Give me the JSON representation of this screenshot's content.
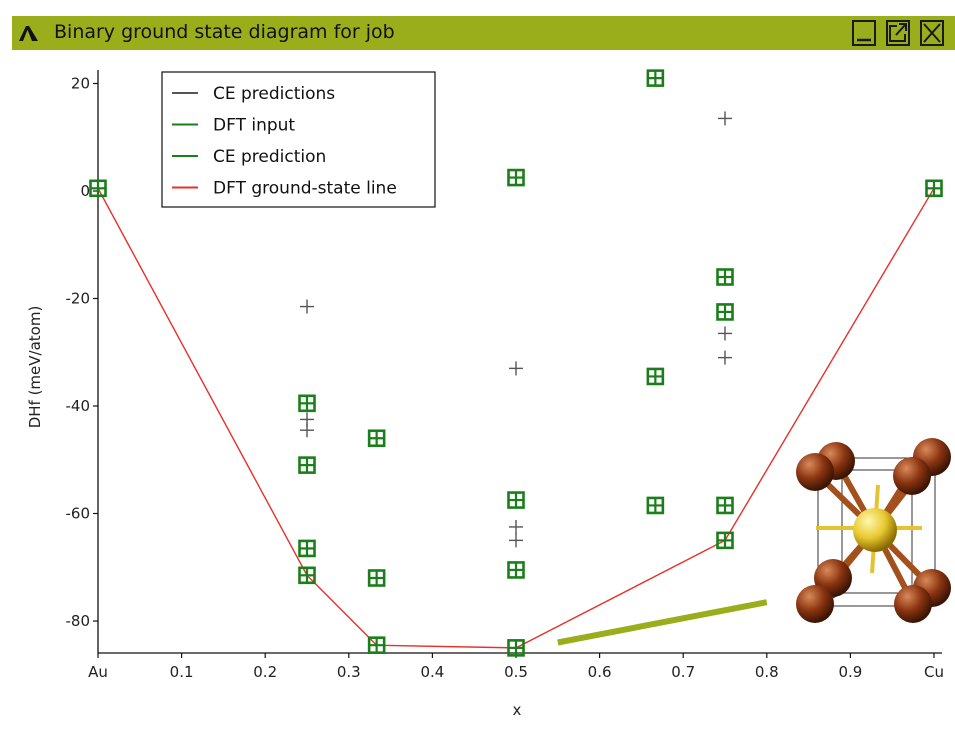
{
  "window": {
    "title": "Binary ground state diagram for job",
    "title_bar_color": "#9aae1c",
    "icon": "app-logo-icon",
    "buttons": [
      "minimize-button",
      "popout-button",
      "close-button"
    ]
  },
  "chart_data": {
    "type": "scatter",
    "xlabel": "x",
    "ylabel": "DHf (meV/atom)",
    "xlim": [
      0,
      1
    ],
    "ylim": [
      -86,
      22
    ],
    "x_ticks": [
      {
        "value": 0,
        "label": "Au"
      },
      {
        "value": 0.1,
        "label": "0.1"
      },
      {
        "value": 0.2,
        "label": "0.2"
      },
      {
        "value": 0.3,
        "label": "0.3"
      },
      {
        "value": 0.4,
        "label": "0.4"
      },
      {
        "value": 0.5,
        "label": "0.5"
      },
      {
        "value": 0.6,
        "label": "0.6"
      },
      {
        "value": 0.7,
        "label": "0.7"
      },
      {
        "value": 0.8,
        "label": "0.8"
      },
      {
        "value": 0.9,
        "label": "0.9"
      },
      {
        "value": 1.0,
        "label": "Cu"
      }
    ],
    "y_ticks": [
      {
        "value": 20,
        "label": "20"
      },
      {
        "value": 0,
        "label": "0"
      },
      {
        "value": -20,
        "label": "-20"
      },
      {
        "value": -40,
        "label": "-40"
      },
      {
        "value": -60,
        "label": "-60"
      },
      {
        "value": -80,
        "label": "-80"
      }
    ],
    "legend_position": "top-left",
    "series": [
      {
        "name": "CE predictions",
        "color": "#555555",
        "marker": "plus",
        "points": [
          [
            0.25,
            -21.5
          ],
          [
            0.25,
            -42.5
          ],
          [
            0.25,
            -44.5
          ],
          [
            0.5,
            -33.0
          ],
          [
            0.5,
            -62.5
          ],
          [
            0.5,
            -65.0
          ],
          [
            0.75,
            13.5
          ],
          [
            0.75,
            -26.5
          ],
          [
            0.75,
            -31.0
          ]
        ]
      },
      {
        "name": "DFT input",
        "color": "#1a7f1a",
        "marker": "square",
        "points": [
          [
            0,
            0.5
          ],
          [
            0.25,
            -39.5
          ],
          [
            0.25,
            -51
          ],
          [
            0.25,
            -66.5
          ],
          [
            0.25,
            -71.5
          ],
          [
            0.3333,
            -46
          ],
          [
            0.3333,
            -72
          ],
          [
            0.3333,
            -84.5
          ],
          [
            0.5,
            2.5
          ],
          [
            0.5,
            -57.5
          ],
          [
            0.5,
            -70.5
          ],
          [
            0.5,
            -85
          ],
          [
            0.6667,
            21
          ],
          [
            0.6667,
            -34.5
          ],
          [
            0.6667,
            -58.5
          ],
          [
            0.75,
            -16
          ],
          [
            0.75,
            -22.5
          ],
          [
            0.75,
            -58.5
          ],
          [
            0.75,
            -65
          ],
          [
            1.0,
            0.5
          ]
        ]
      },
      {
        "name": "CE prediction",
        "color": "#1a7f1a",
        "marker": "plus",
        "points": [
          [
            0,
            0.5
          ],
          [
            0.25,
            -39.5
          ],
          [
            0.25,
            -51
          ],
          [
            0.25,
            -66.5
          ],
          [
            0.25,
            -71.5
          ],
          [
            0.3333,
            -46
          ],
          [
            0.3333,
            -72
          ],
          [
            0.3333,
            -84.5
          ],
          [
            0.5,
            2.5
          ],
          [
            0.5,
            -57.5
          ],
          [
            0.5,
            -70.5
          ],
          [
            0.5,
            -85
          ],
          [
            0.6667,
            21
          ],
          [
            0.6667,
            -34.5
          ],
          [
            0.6667,
            -58.5
          ],
          [
            0.75,
            -16
          ],
          [
            0.75,
            -22.5
          ],
          [
            0.75,
            -58.5
          ],
          [
            0.75,
            -65
          ],
          [
            1.0,
            0.5
          ]
        ]
      },
      {
        "name": "DFT ground-state line",
        "color": "#e8302a",
        "marker": "line",
        "points": [
          [
            0,
            0.5
          ],
          [
            0.25,
            -71.5
          ],
          [
            0.3333,
            -84.5
          ],
          [
            0.5,
            -85
          ],
          [
            0.75,
            -65
          ],
          [
            1.0,
            0.5
          ]
        ]
      }
    ],
    "annotation": {
      "type": "arrow-line",
      "color": "#9aae1c",
      "from": [
        0.55,
        -84
      ],
      "to": [
        0.8,
        -76.5
      ]
    },
    "inset": {
      "name": "crystal-structure-image",
      "corner_atom_color": "#8a3410",
      "center_atom_color": "#e8c830"
    }
  }
}
